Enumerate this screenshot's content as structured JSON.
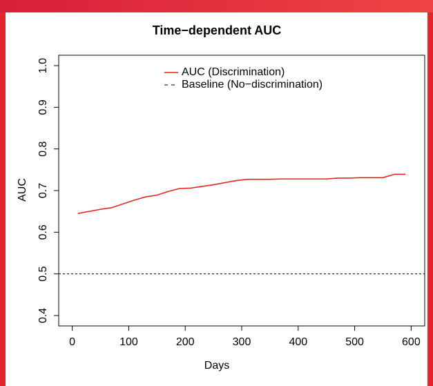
{
  "chart_data": {
    "type": "line",
    "title": "Time−dependent AUC",
    "x_label": "Days",
    "y_label": "AUC",
    "x": [
      10,
      30,
      50,
      70,
      90,
      110,
      130,
      150,
      170,
      190,
      210,
      230,
      250,
      270,
      290,
      310,
      330,
      350,
      370,
      390,
      410,
      430,
      450,
      470,
      490,
      510,
      530,
      550,
      570,
      590
    ],
    "series": [
      {
        "name": "AUC (Discrimination)",
        "color": "#e3261f",
        "values": [
          0.645,
          0.65,
          0.655,
          0.659,
          0.668,
          0.677,
          0.685,
          0.689,
          0.698,
          0.705,
          0.706,
          0.71,
          0.714,
          0.719,
          0.724,
          0.727,
          0.727,
          0.727,
          0.728,
          0.728,
          0.728,
          0.728,
          0.728,
          0.73,
          0.73,
          0.731,
          0.731,
          0.731,
          0.739,
          0.739
        ]
      }
    ],
    "hline": {
      "name": "Baseline (No−discrimination)",
      "value": 0.5,
      "color": "#000000"
    },
    "xlim": [
      -24,
      624
    ],
    "xticks": [
      0,
      100,
      200,
      300,
      400,
      500,
      600
    ],
    "ylim": [
      0.375,
      1.025
    ],
    "yticks": [
      0.4,
      0.5,
      0.6,
      0.7,
      0.8,
      0.9,
      {
        "value": 1,
        "label": "1.0"
      }
    ]
  }
}
